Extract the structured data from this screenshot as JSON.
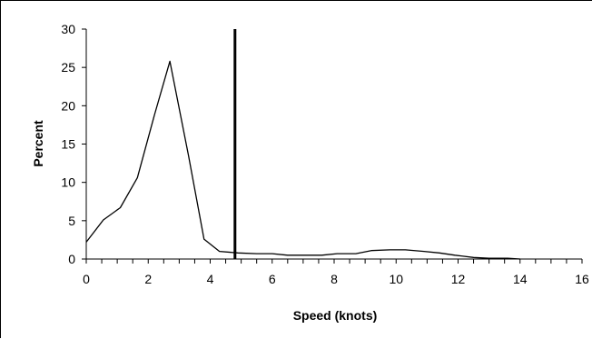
{
  "chart_data": {
    "type": "line",
    "title": "",
    "xlabel": "Speed (knots)",
    "ylabel": "Percent",
    "xlim": [
      0,
      16
    ],
    "ylim": [
      0,
      30
    ],
    "xticks": [
      0,
      2,
      4,
      6,
      8,
      10,
      12,
      14,
      16
    ],
    "yticks": [
      0,
      5,
      10,
      15,
      20,
      25,
      30
    ],
    "grid": false,
    "legend": "none",
    "reference_line": {
      "x": 4.8
    },
    "series": [
      {
        "color": "#000000",
        "x": [
          0,
          0.55,
          1.1,
          1.65,
          2.2,
          2.7,
          3.3,
          3.8,
          4.3,
          4.9,
          5.5,
          6.0,
          6.5,
          7.1,
          7.6,
          8.1,
          8.7,
          9.2,
          9.8,
          10.3,
          10.9,
          11.4,
          11.9,
          12.5,
          13.0,
          13.6,
          14.0
        ],
        "y": [
          2.2,
          5.1,
          6.7,
          10.6,
          18.8,
          25.8,
          13.5,
          2.6,
          1.0,
          0.8,
          0.7,
          0.7,
          0.5,
          0.5,
          0.5,
          0.7,
          0.7,
          1.1,
          1.2,
          1.2,
          1.0,
          0.8,
          0.5,
          0.2,
          0.1,
          0.1,
          0.0
        ]
      }
    ]
  }
}
